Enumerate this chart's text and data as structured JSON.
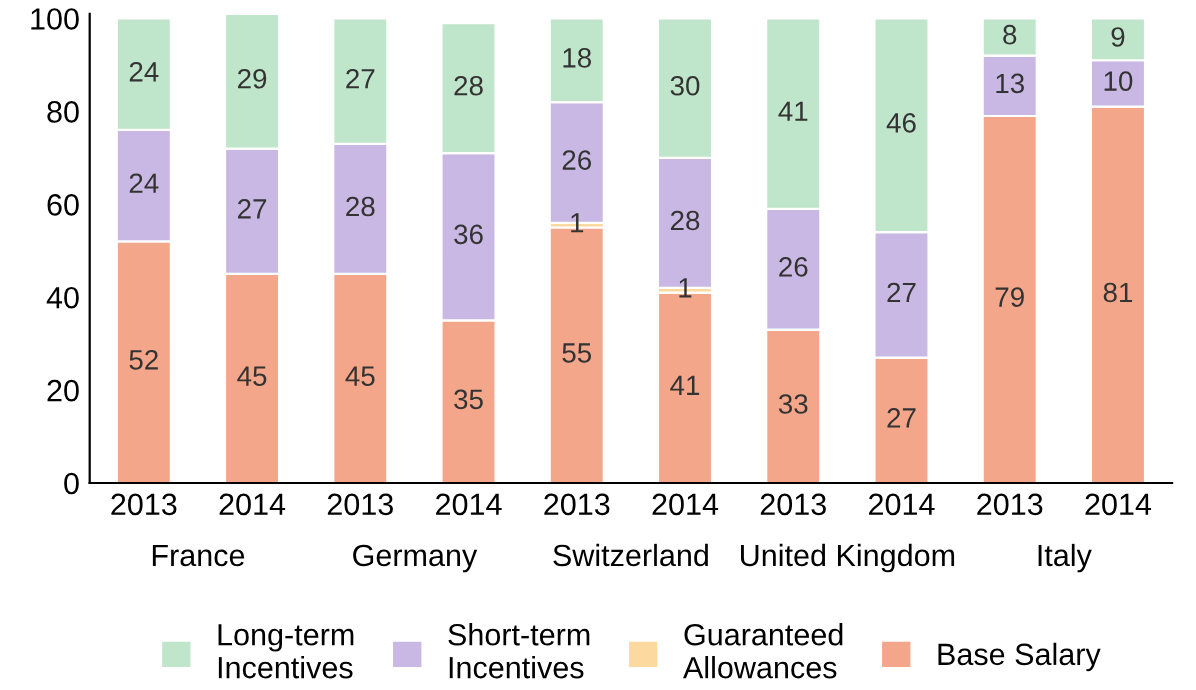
{
  "chart_data": {
    "type": "bar",
    "stacked": true,
    "categories": [
      "2013",
      "2014",
      "2013",
      "2014",
      "2013",
      "2014",
      "2013",
      "2014",
      "2013",
      "2014"
    ],
    "annotations": [
      "France",
      "Germany",
      "Switzerland",
      "United Kingdom",
      "Italy"
    ],
    "series": [
      {
        "name": "Base Salary",
        "color": "#f4a68b",
        "values": [
          52,
          45,
          45,
          35,
          55,
          41,
          33,
          27,
          79,
          81
        ],
        "value_labels": [
          "52",
          "45",
          "45",
          "35",
          "55",
          "41",
          "33",
          "27",
          "79",
          "81"
        ]
      },
      {
        "name": "Guaranteed\nAllowances",
        "color": "#fcd99e",
        "values": [
          null,
          null,
          null,
          null,
          1,
          1,
          null,
          null,
          null,
          null
        ],
        "value_labels": [
          null,
          null,
          null,
          null,
          "1",
          "1",
          null,
          null,
          null,
          null
        ]
      },
      {
        "name": "Short-term\nIncentives",
        "color": "#c9b8e4",
        "values": [
          24,
          27,
          28,
          36,
          26,
          28,
          26,
          27,
          13,
          10
        ],
        "value_labels": [
          "24",
          "27",
          "28",
          "36",
          "26",
          "28",
          "26",
          "27",
          "13",
          "10"
        ]
      },
      {
        "name": "Long-term\nIncentives",
        "color": "#bfe5cb",
        "values": [
          24,
          29,
          27,
          28,
          18,
          30,
          41,
          46,
          8,
          9
        ],
        "value_labels": [
          "24",
          "29",
          "27",
          "28",
          "18",
          "30",
          "41",
          "46",
          "8",
          "9"
        ]
      }
    ],
    "ylim": [
      0,
      101
    ],
    "yticks": [
      0,
      20,
      40,
      60,
      80,
      100
    ],
    "grid": false,
    "legend": "bottom"
  }
}
